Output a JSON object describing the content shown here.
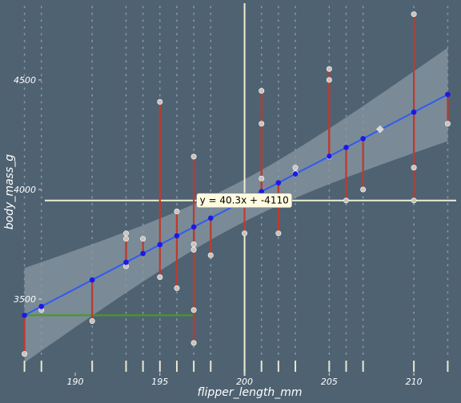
{
  "chart_data": {
    "type": "scatter",
    "xlabel": "flipper_length_mm",
    "ylabel": "body_mass_g",
    "x_ticks": [
      190,
      195,
      200,
      205,
      210
    ],
    "y_ticks": [
      3500,
      4000,
      4500
    ],
    "xlim": [
      186.5,
      212.5
    ],
    "ylim": [
      3150,
      4850
    ],
    "regression": {
      "slope": 40.3,
      "intercept": -4110,
      "label": "y = 40.3x + -4110"
    },
    "reference_lines": {
      "x": 200,
      "y": 3950
    },
    "points": [
      {
        "x": 187,
        "y": 3250
      },
      {
        "x": 188,
        "y": 3450
      },
      {
        "x": 191,
        "y": 3400
      },
      {
        "x": 193,
        "y": 3800
      },
      {
        "x": 193,
        "y": 3775
      },
      {
        "x": 193,
        "y": 3650
      },
      {
        "x": 194,
        "y": 3775
      },
      {
        "x": 195,
        "y": 4400
      },
      {
        "x": 195,
        "y": 3600
      },
      {
        "x": 196,
        "y": 3900
      },
      {
        "x": 196,
        "y": 3550
      },
      {
        "x": 197,
        "y": 4150
      },
      {
        "x": 197,
        "y": 3750
      },
      {
        "x": 197,
        "y": 3725
      },
      {
        "x": 197,
        "y": 3450
      },
      {
        "x": 197,
        "y": 3300
      },
      {
        "x": 198,
        "y": 3700
      },
      {
        "x": 200,
        "y": 3800
      },
      {
        "x": 201,
        "y": 4450
      },
      {
        "x": 201,
        "y": 4300
      },
      {
        "x": 201,
        "y": 4050
      },
      {
        "x": 201,
        "y": 3975
      },
      {
        "x": 202,
        "y": 3800
      },
      {
        "x": 203,
        "y": 4100
      },
      {
        "x": 203,
        "y": 4075
      },
      {
        "x": 205,
        "y": 4550
      },
      {
        "x": 205,
        "y": 4500
      },
      {
        "x": 205,
        "y": 4150
      },
      {
        "x": 206,
        "y": 3950
      },
      {
        "x": 207,
        "y": 4000
      },
      {
        "x": 210,
        "y": 4800
      },
      {
        "x": 210,
        "y": 4100
      },
      {
        "x": 210,
        "y": 3950
      },
      {
        "x": 212,
        "y": 4300
      }
    ],
    "highlight_point": {
      "x": 208,
      "y": 4275
    },
    "colors": {
      "background": "#4f6272",
      "points": "#c9c3bd",
      "residuals": "#c0392b",
      "fit_line": "#2e5cf0",
      "fitted_dots": "#1a1ae6",
      "confidence_band": "#8a98a4",
      "reference_lines": "#eeeed2",
      "annotation": "#4a9a1f",
      "label_bg": "#fffbe0",
      "rug": "#e8e8d0"
    }
  }
}
